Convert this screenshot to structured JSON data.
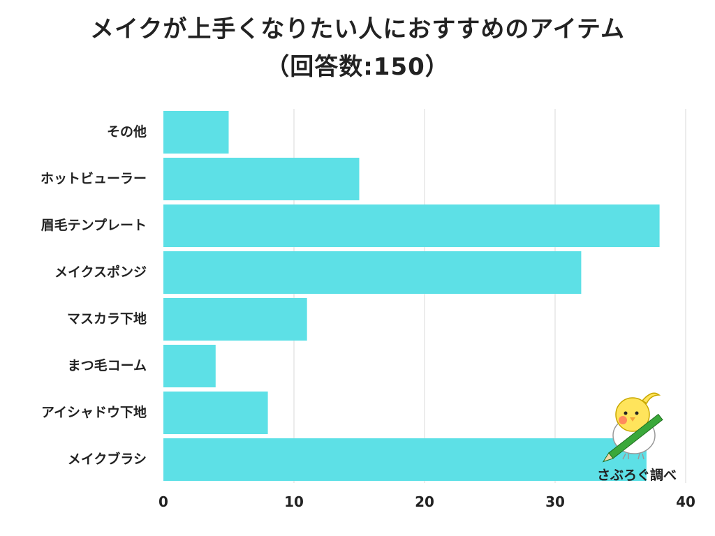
{
  "title_line1": "メイクが上手くなりたい人におすすめのアイテム",
  "title_line2": "（回答数:150）",
  "credit": "さぶろぐ調べ",
  "chart_data": {
    "type": "bar",
    "orientation": "horizontal",
    "categories": [
      "その他",
      "ホットビューラー",
      "眉毛テンプレート",
      "メイクスポンジ",
      "マスカラ下地",
      "まつ毛コーム",
      "アイシャドウ下地",
      "メイクブラシ"
    ],
    "values": [
      5,
      15,
      38,
      32,
      11,
      4,
      8,
      37
    ],
    "xlim": [
      0,
      40
    ],
    "xticks": [
      0,
      10,
      20,
      30,
      40
    ],
    "grid": true,
    "bar_color": "#5de0e6"
  }
}
